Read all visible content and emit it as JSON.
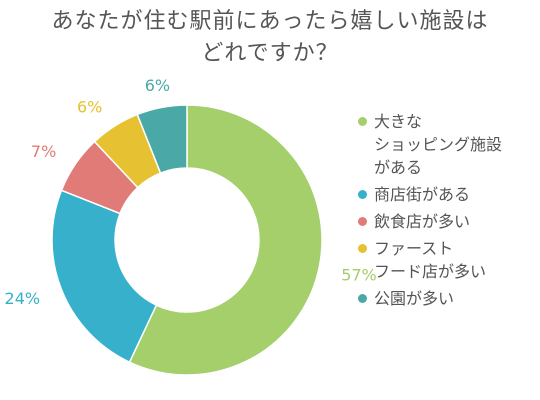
{
  "title": {
    "line1": "あなたが住む駅前にあったら嬉しい施設は",
    "line2": "どれですか？"
  },
  "chart_data": {
    "type": "pie",
    "variant": "donut",
    "title": "あなたが住む駅前にあったら嬉しい施設はどれですか？",
    "categories": [
      "大きなショッピング施設がある",
      "商店街がある",
      "飲食店が多い",
      "ファーストフード店が多い",
      "公園が多い"
    ],
    "values": [
      57,
      24,
      7,
      6,
      6
    ],
    "labels": [
      "57%",
      "24%",
      "7%",
      "6%",
      "6%"
    ],
    "colors": [
      "#a4cf6a",
      "#36b0cb",
      "#e07b78",
      "#e6c131",
      "#4aa9a6"
    ],
    "legend_position": "right"
  },
  "legend": [
    {
      "lines": [
        "大きな",
        "ショッピング施設",
        "がある"
      ],
      "color": "#a4cf6a"
    },
    {
      "lines": [
        "商店街がある"
      ],
      "color": "#36b0cb"
    },
    {
      "lines": [
        "飲食店が多い"
      ],
      "color": "#e07b78"
    },
    {
      "lines": [
        "ファースト",
        "フード店が多い"
      ],
      "color": "#e6c131"
    },
    {
      "lines": [
        "公園が多い"
      ],
      "color": "#4aa9a6"
    }
  ]
}
